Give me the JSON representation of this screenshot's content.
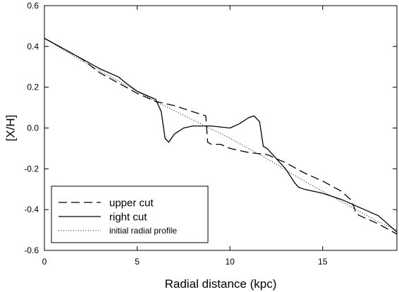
{
  "chart_data": {
    "type": "line",
    "title": "",
    "xlabel": "Radial distance (kpc)",
    "ylabel": "[X/H]",
    "xlim": [
      0,
      19
    ],
    "ylim": [
      -0.6,
      0.6
    ],
    "xticks": [
      0,
      5,
      10,
      15
    ],
    "yticks": [
      -0.6,
      -0.4,
      -0.2,
      0.0,
      0.2,
      0.4,
      0.6
    ],
    "ytick_labels": [
      "-0.6",
      "-0.4",
      "-0.2",
      "0.0",
      "0.2",
      "0.4",
      "0.6"
    ],
    "grid": false,
    "legend_position": "bottom-left",
    "series": [
      {
        "name": "upper cut",
        "style": "dashed",
        "points": [
          [
            0,
            0.44
          ],
          [
            1,
            0.39
          ],
          [
            2,
            0.34
          ],
          [
            3,
            0.27
          ],
          [
            4,
            0.22
          ],
          [
            5,
            0.17
          ],
          [
            6,
            0.13
          ],
          [
            7,
            0.11
          ],
          [
            8,
            0.08
          ],
          [
            8.7,
            0.06
          ],
          [
            8.8,
            -0.07
          ],
          [
            9,
            -0.08
          ],
          [
            9.5,
            -0.08
          ],
          [
            10,
            -0.1
          ],
          [
            11,
            -0.12
          ],
          [
            12,
            -0.13
          ],
          [
            13,
            -0.17
          ],
          [
            14,
            -0.22
          ],
          [
            15,
            -0.26
          ],
          [
            16,
            -0.31
          ],
          [
            16.5,
            -0.35
          ],
          [
            16.7,
            -0.39
          ],
          [
            16.8,
            -0.42
          ],
          [
            17,
            -0.43
          ],
          [
            18,
            -0.47
          ],
          [
            19,
            -0.52
          ]
        ]
      },
      {
        "name": "right cut",
        "style": "solid",
        "points": [
          [
            0,
            0.44
          ],
          [
            1,
            0.39
          ],
          [
            2,
            0.34
          ],
          [
            3,
            0.29
          ],
          [
            4,
            0.25
          ],
          [
            4.4,
            0.22
          ],
          [
            5,
            0.18
          ],
          [
            6,
            0.14
          ],
          [
            6.3,
            0.08
          ],
          [
            6.5,
            -0.05
          ],
          [
            6.7,
            -0.07
          ],
          [
            7,
            -0.03
          ],
          [
            7.5,
            0.0
          ],
          [
            8,
            0.01
          ],
          [
            9,
            0.01
          ],
          [
            10,
            0.0
          ],
          [
            10.5,
            0.02
          ],
          [
            11,
            0.05
          ],
          [
            11.3,
            0.06
          ],
          [
            11.6,
            0.03
          ],
          [
            11.8,
            -0.09
          ],
          [
            12,
            -0.1
          ],
          [
            12.5,
            -0.15
          ],
          [
            13,
            -0.2
          ],
          [
            13.5,
            -0.27
          ],
          [
            13.7,
            -0.29
          ],
          [
            14,
            -0.3
          ],
          [
            15,
            -0.32
          ],
          [
            16,
            -0.35
          ],
          [
            17,
            -0.39
          ],
          [
            18,
            -0.43
          ],
          [
            19,
            -0.51
          ]
        ]
      },
      {
        "name": "initial radial profile",
        "style": "dotted",
        "points": [
          [
            0,
            0.44
          ],
          [
            2,
            0.33
          ],
          [
            4,
            0.23
          ],
          [
            6,
            0.13
          ],
          [
            8,
            0.04
          ],
          [
            10,
            -0.05
          ],
          [
            12,
            -0.15
          ],
          [
            14,
            -0.26
          ],
          [
            16,
            -0.36
          ],
          [
            18,
            -0.46
          ],
          [
            19,
            -0.5
          ]
        ]
      }
    ]
  }
}
